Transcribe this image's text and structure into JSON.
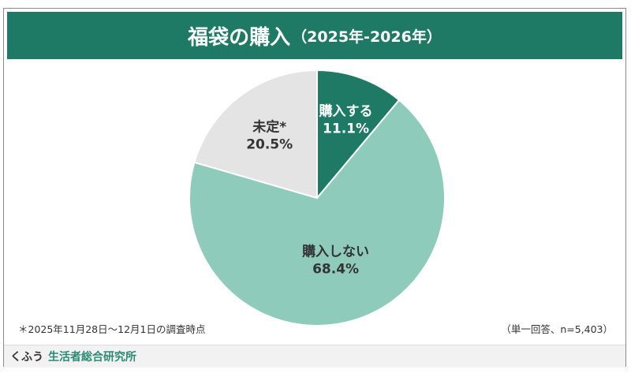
{
  "title": {
    "main": "福袋の購入",
    "sub": "（2025年-2026年）"
  },
  "chart_data": {
    "type": "pie",
    "start_angle_deg": 0,
    "direction": "clockwise",
    "slices": [
      {
        "label": "購入する",
        "value": 11.1,
        "value_label": "11.1%",
        "color": "#1e7a64",
        "text_color": "#ffffff"
      },
      {
        "label": "購入しない",
        "value": 68.4,
        "value_label": "68.4%",
        "color": "#8ecbbb",
        "text_color": "#333333"
      },
      {
        "label": "未定*",
        "value": 20.5,
        "value_label": "20.5%",
        "color": "#e4e4e4",
        "text_color": "#333333"
      }
    ]
  },
  "notes": {
    "left": "＊2025年11月28日〜12月1日の調査時点",
    "right": "（単一回答、n=5,403）"
  },
  "footer": {
    "brand": "くふう",
    "org": "生活者総合研究所"
  },
  "colors": {
    "header_bg": "#1e7a64",
    "brand_accent": "#2a8a74"
  }
}
